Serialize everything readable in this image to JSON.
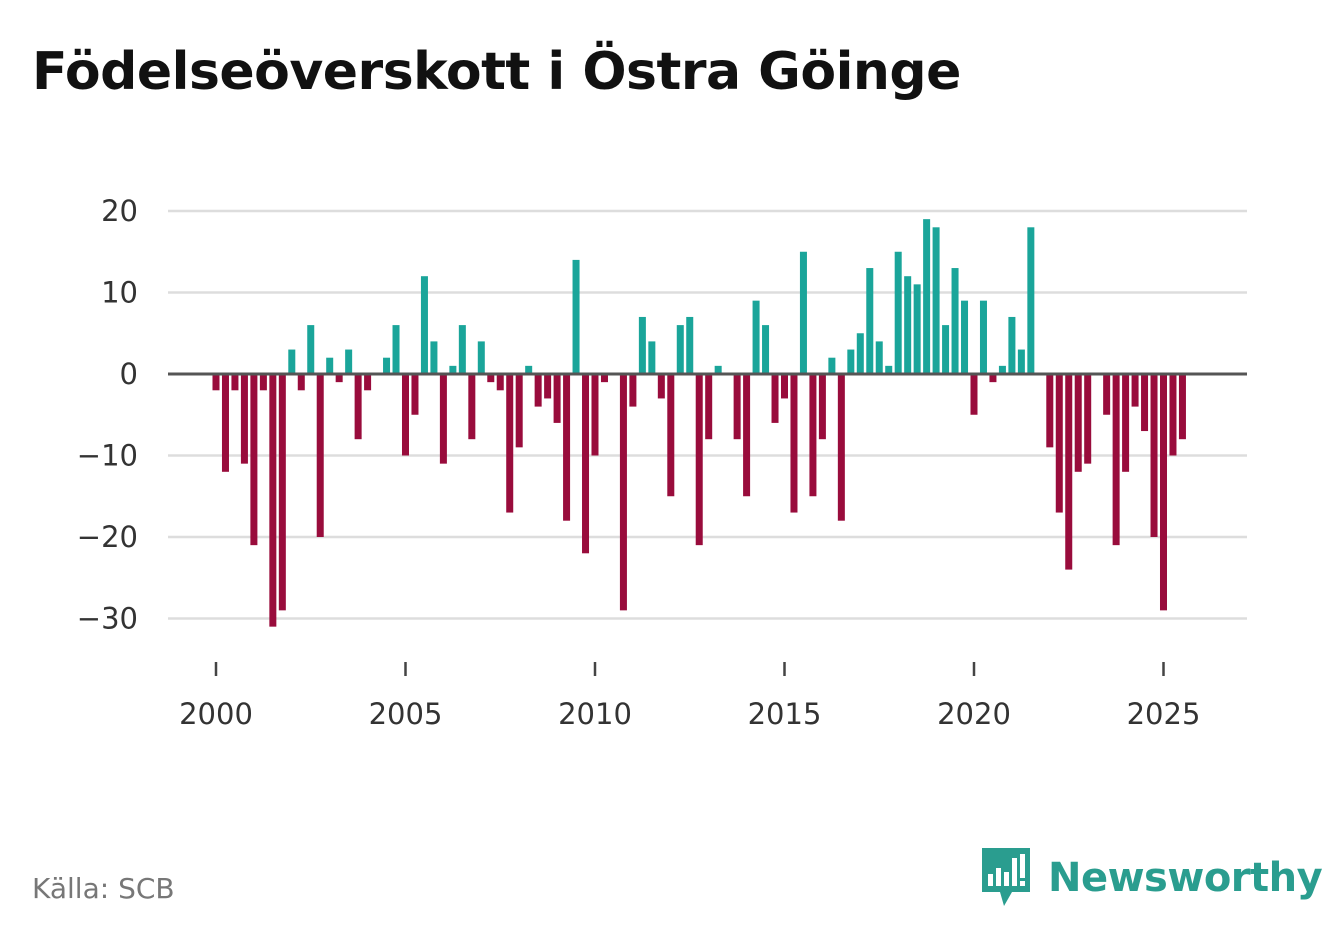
{
  "title": "Födelseöverskott i Östra Göinge",
  "source": "Källa: SCB",
  "brand": "Newsworthy",
  "colors": {
    "positive": "#1aa59a",
    "negative": "#990c3c",
    "zero_line": "#555555",
    "grid": "#dddddd",
    "brand": "#2a9d8f"
  },
  "chart_data": {
    "type": "bar",
    "title": "Födelseöverskott i Östra Göinge",
    "xlabel": "",
    "ylabel": "",
    "ylim": [
      -35,
      22
    ],
    "yticks": [
      20,
      10,
      0,
      -10,
      -20,
      -30
    ],
    "ytick_labels": [
      "20",
      "10",
      "0",
      "−10",
      "−20",
      "−30"
    ],
    "xlim": [
      1999,
      2027.3
    ],
    "xticks": [
      2000,
      2005,
      2010,
      2015,
      2020,
      2025
    ],
    "xtick_labels": [
      "2000",
      "2005",
      "2010",
      "2015",
      "2020",
      "2025"
    ],
    "start": 2000,
    "step": 0.25,
    "frequency": "quarterly",
    "values": [
      -2,
      -12,
      -2,
      -11,
      -21,
      -2,
      -31,
      -29,
      3,
      -2,
      6,
      -20,
      2,
      -1,
      3,
      -8,
      -2,
      0,
      2,
      6,
      -10,
      -5,
      12,
      4,
      -11,
      1,
      6,
      -8,
      4,
      -1,
      -2,
      -17,
      -9,
      1,
      -4,
      -3,
      -6,
      -18,
      14,
      -22,
      -10,
      -1,
      0,
      -29,
      -4,
      7,
      4,
      -3,
      -15,
      6,
      7,
      -21,
      -8,
      1,
      0,
      -8,
      -15,
      9,
      6,
      -6,
      -3,
      -17,
      15,
      -15,
      -8,
      2,
      -18,
      3,
      5,
      13,
      4,
      1,
      15,
      12,
      11,
      19,
      18,
      6,
      13,
      9,
      -5,
      9,
      -1,
      1,
      7,
      3,
      18,
      0,
      -9,
      -17,
      -24,
      -12,
      -11,
      0,
      -5,
      -21,
      -12,
      -4,
      -7,
      -20,
      -29,
      -10,
      -8
    ]
  }
}
